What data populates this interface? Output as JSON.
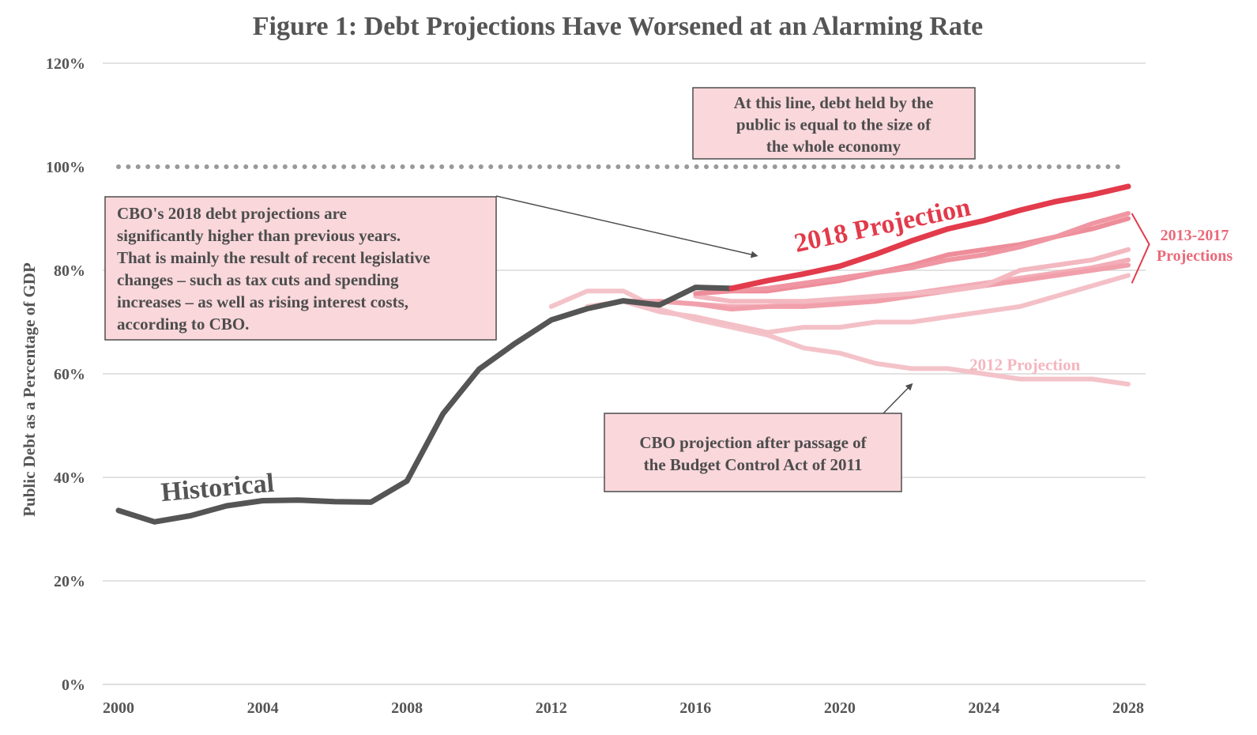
{
  "chart_data": {
    "type": "line",
    "title": "Figure 1: Debt Projections Have Worsened at an Alarming Rate",
    "xlabel": "",
    "ylabel": "Public Debt as a Percentage of GDP",
    "xlim": [
      2000,
      2028
    ],
    "ylim": [
      0,
      120
    ],
    "x_ticks": [
      2000,
      2004,
      2008,
      2012,
      2016,
      2020,
      2024,
      2028
    ],
    "x_tick_labels": [
      "2000",
      "2004",
      "2008",
      "2012",
      "2016",
      "2020",
      "2024",
      "2028"
    ],
    "y_ticks": [
      0,
      20,
      40,
      60,
      80,
      100,
      120
    ],
    "y_tick_labels": [
      "0%",
      "20%",
      "40%",
      "60%",
      "80%",
      "100%",
      "120%"
    ],
    "grid": "horizontal",
    "reference_line": {
      "y": 100,
      "style": "dotted",
      "color": "#999999"
    },
    "series": [
      {
        "name": "Historical",
        "color": "#555555",
        "width": 7,
        "x": [
          2000,
          2001,
          2002,
          2003,
          2004,
          2005,
          2006,
          2007,
          2008,
          2009,
          2010,
          2011,
          2012,
          2013,
          2014,
          2015,
          2016,
          2017
        ],
        "y": [
          33.6,
          31.4,
          32.6,
          34.5,
          35.5,
          35.6,
          35.3,
          35.2,
          39.3,
          52.3,
          60.9,
          65.9,
          70.4,
          72.6,
          74.1,
          73.3,
          76.7,
          76.5
        ]
      },
      {
        "name": "2018 Projection",
        "color": "#e23b4b",
        "width": 7,
        "x": [
          2017,
          2018,
          2019,
          2020,
          2021,
          2022,
          2023,
          2024,
          2025,
          2026,
          2027,
          2028
        ],
        "y": [
          76.5,
          78.0,
          79.3,
          80.8,
          83.1,
          85.7,
          88.0,
          89.6,
          91.6,
          93.3,
          94.6,
          96.2
        ]
      },
      {
        "name": "2012 Projection",
        "color": "#f4c3ca",
        "width": 6,
        "x": [
          2012,
          2013,
          2014,
          2015,
          2016,
          2017,
          2018,
          2019,
          2020,
          2021,
          2022,
          2023,
          2024,
          2025,
          2026,
          2027,
          2028
        ],
        "y": [
          73,
          76,
          76,
          72.5,
          70.5,
          69,
          67.5,
          65,
          64,
          62,
          61,
          61,
          60,
          59,
          59,
          59,
          58
        ]
      },
      {
        "name": "",
        "color": "#f4c0c7",
        "width": 6,
        "x": [
          2013,
          2014,
          2015,
          2016,
          2017,
          2018,
          2019,
          2020,
          2021,
          2022,
          2023,
          2024,
          2025,
          2026,
          2027,
          2028
        ],
        "y": [
          73,
          74,
          72,
          71,
          69.5,
          68,
          69,
          69,
          70,
          70,
          71,
          72,
          73,
          75,
          77,
          79
        ]
      },
      {
        "name": "",
        "color": "#f3adb7",
        "width": 6,
        "x": [
          2014,
          2015,
          2016,
          2017,
          2018,
          2019,
          2020,
          2021,
          2022,
          2023,
          2024,
          2025,
          2026,
          2027,
          2028
        ],
        "y": [
          74,
          74,
          73.5,
          73,
          73,
          73.5,
          74,
          74.5,
          75.5,
          76.5,
          77.5,
          78.5,
          79.5,
          80.5,
          82
        ]
      },
      {
        "name": "",
        "color": "#f1a0ab",
        "width": 6,
        "x": [
          2015,
          2016,
          2017,
          2018,
          2019,
          2020,
          2021,
          2022,
          2023,
          2024,
          2025,
          2026,
          2027,
          2028
        ],
        "y": [
          74,
          73.5,
          72.5,
          73,
          73,
          73.5,
          74,
          75,
          76,
          77,
          78,
          79,
          80,
          81
        ]
      },
      {
        "name": "",
        "color": "#f3b8c0",
        "width": 6,
        "x": [
          2016,
          2017,
          2018,
          2019,
          2020,
          2021,
          2022,
          2023,
          2024,
          2025,
          2026,
          2027,
          2028
        ],
        "y": [
          75,
          74,
          74,
          74,
          74.5,
          75,
          75.5,
          76,
          77,
          80,
          81,
          82,
          84
        ]
      },
      {
        "name": "",
        "color": "#ee8d9a",
        "width": 6,
        "x": [
          2016,
          2017,
          2018,
          2019,
          2020,
          2021,
          2022,
          2023,
          2024,
          2025,
          2026,
          2027,
          2028
        ],
        "y": [
          75.5,
          76,
          76,
          77,
          78,
          79.5,
          81,
          83,
          84,
          85,
          86.5,
          88,
          90
        ]
      },
      {
        "name": "",
        "color": "#ef96a2",
        "width": 6,
        "x": [
          2017,
          2018,
          2019,
          2020,
          2021,
          2022,
          2023,
          2024,
          2025,
          2026,
          2027,
          2028
        ],
        "y": [
          76,
          76.5,
          77.5,
          78.5,
          79.5,
          80.5,
          82,
          83,
          84.5,
          86.5,
          89,
          91
        ]
      }
    ],
    "annotations": {
      "box_100": {
        "lines": [
          "At this line, debt held by the",
          "public is equal to the size of",
          "the whole economy"
        ],
        "anchor": {
          "x": 2021.0,
          "y": 110.8
        }
      },
      "box_2018": {
        "lines": [
          "CBO's 2018 debt projections are",
          "significantly higher than previous years.",
          "That is mainly the result of recent legislative",
          "changes – such as tax cuts and spending",
          "increases – as well as rising interest costs,",
          "according to CBO."
        ],
        "arrow_to": {
          "x": 2017.7,
          "y": 82.8
        }
      },
      "box_2012": {
        "lines": [
          "CBO projection after passage of",
          "the Budget Control Act of 2011"
        ],
        "arrow_to": {
          "x": 2022.0,
          "y": 58.0
        }
      },
      "label_historical": {
        "text": "Historical",
        "x": 2001.2,
        "y": 35.4,
        "rotate": -5
      },
      "label_2018": {
        "text": "2018 Projection",
        "x": 2018.8,
        "y": 83.5,
        "rotate": -12
      },
      "label_2012": {
        "text": "2012 Projection",
        "x": 2023.6,
        "y": 60.7
      },
      "label_range": {
        "lines": [
          "2013-2017",
          "Projections"
        ],
        "bracket": {
          "x": 2028.1,
          "y_top": 91.0,
          "y_bottom": 77.5
        }
      }
    }
  }
}
